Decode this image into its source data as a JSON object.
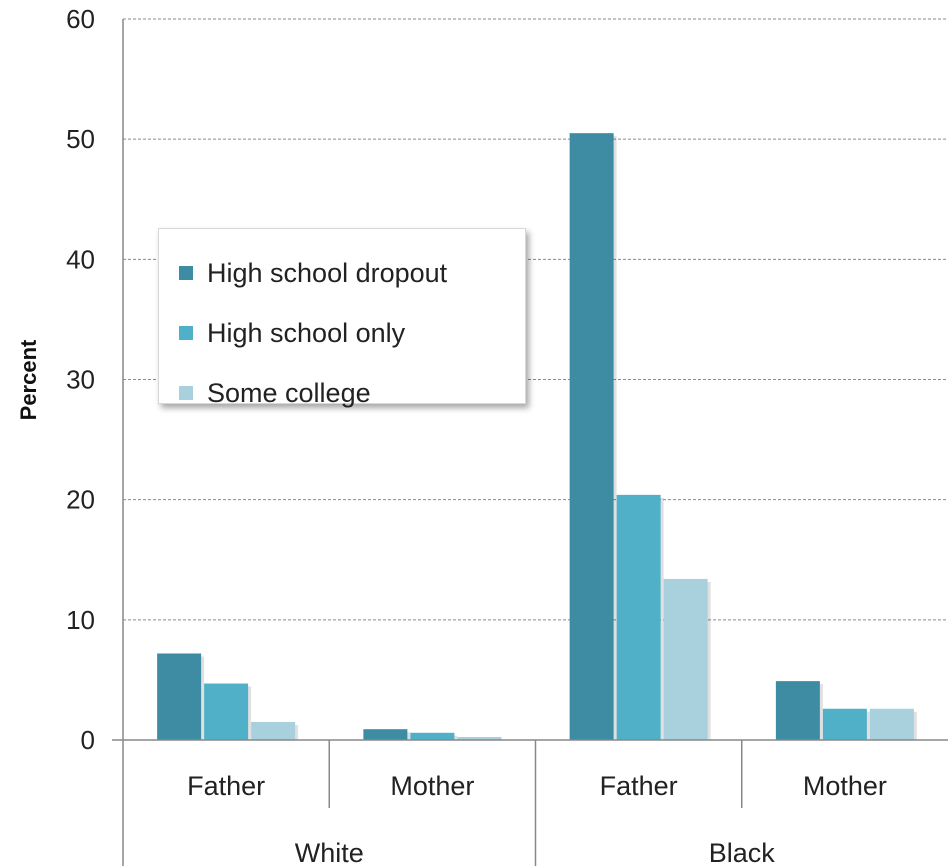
{
  "chart_data": {
    "type": "bar",
    "ylabel": "Percent",
    "ylim": [
      0,
      60
    ],
    "yticks": [
      "0",
      "10",
      "20",
      "30",
      "40",
      "50",
      "60"
    ],
    "grid": true,
    "legend_position": "upper-left",
    "groups": [
      {
        "name": "White",
        "categories": [
          "Father",
          "Mother"
        ]
      },
      {
        "name": "Black",
        "categories": [
          "Father",
          "Mother"
        ]
      }
    ],
    "categories": [
      "White Father",
      "White Mother",
      "Black Father",
      "Black Mother"
    ],
    "series": [
      {
        "name": "High school dropout",
        "color": "#3E8CA3",
        "values": [
          7.2,
          0.9,
          50.5,
          4.9
        ]
      },
      {
        "name": "High school only",
        "color": "#4FB0C8",
        "values": [
          4.7,
          0.6,
          20.4,
          2.6
        ]
      },
      {
        "name": "Some college",
        "color": "#A9D0DD",
        "values": [
          1.5,
          0.25,
          13.4,
          2.6
        ]
      }
    ]
  }
}
